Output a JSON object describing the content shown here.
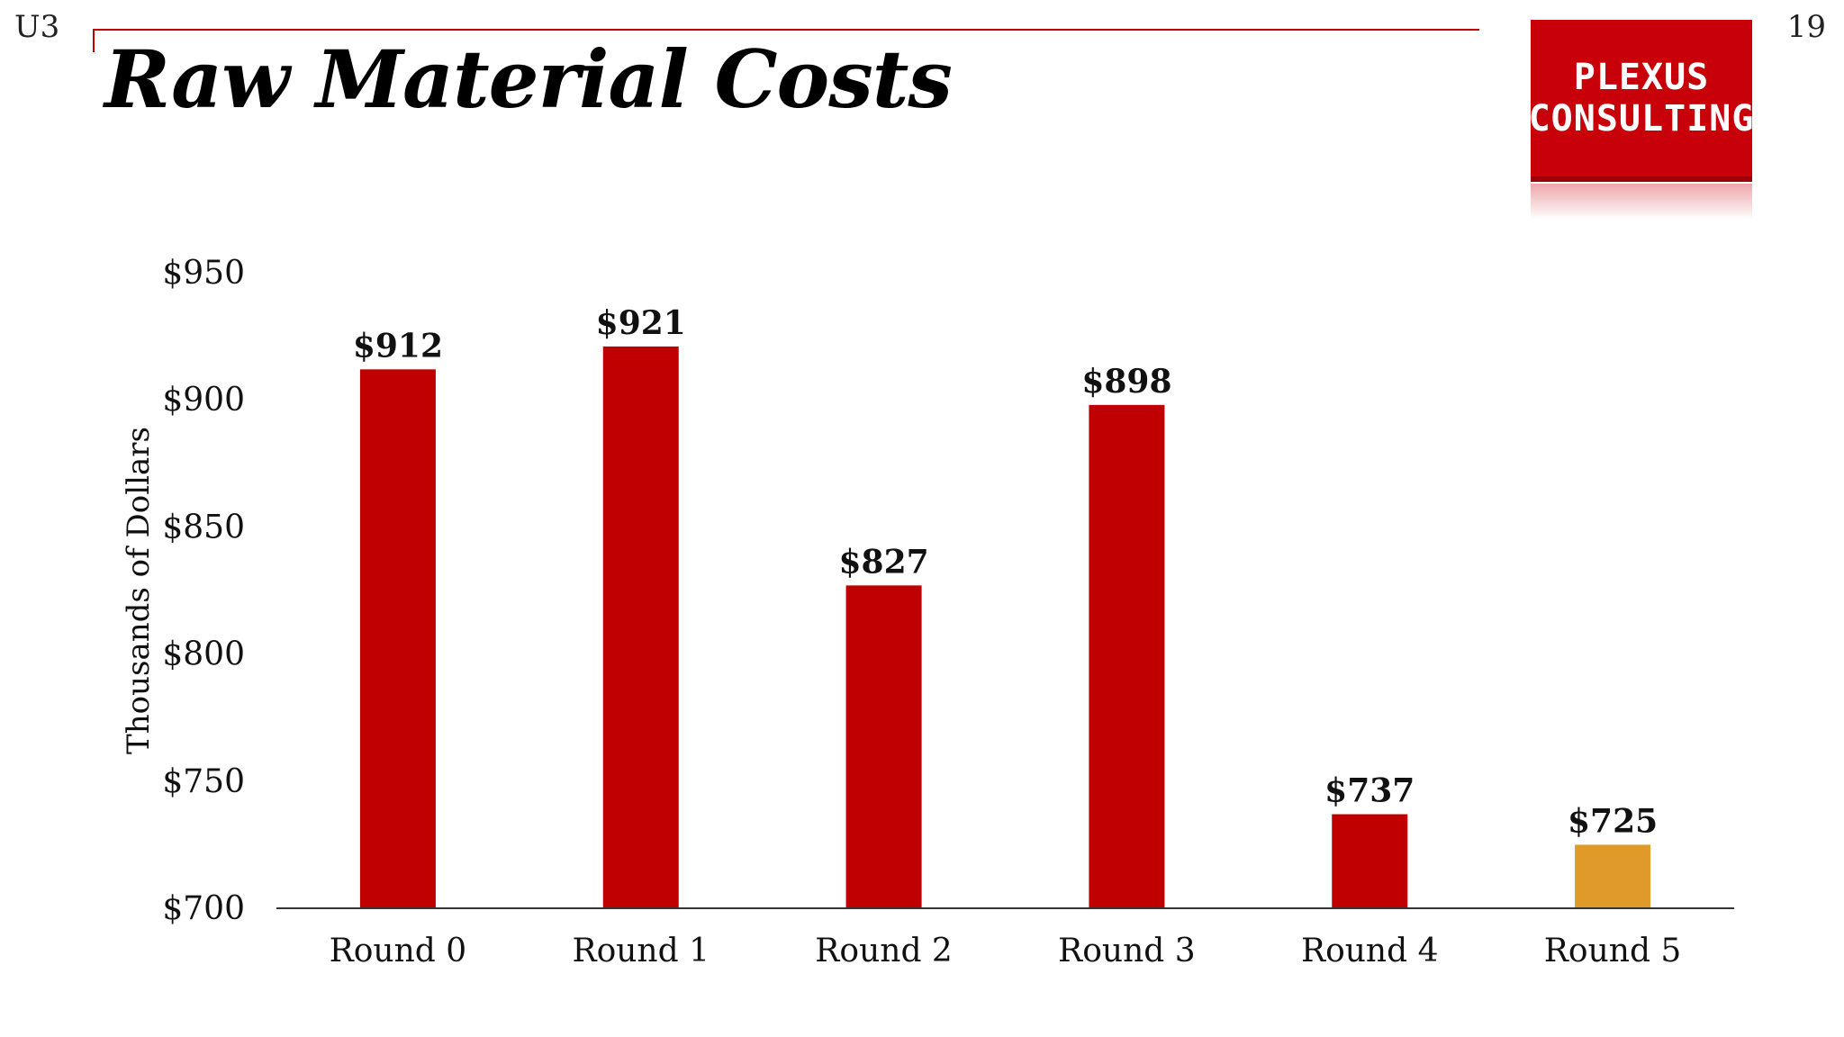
{
  "page": {
    "section_label": "U3",
    "page_number": "19",
    "title": "Raw Material Costs"
  },
  "logo": {
    "line1": "PLEXUS",
    "line2": "CONSULTING"
  },
  "colors": {
    "primary_bar": "#c00000",
    "highlight_bar": "#e09a2a",
    "brand_red": "#c8000a"
  },
  "chart_data": {
    "type": "bar",
    "title": "Raw Material Costs",
    "xlabel": "",
    "ylabel": "Thousands of Dollars",
    "categories": [
      "Round 0",
      "Round 1",
      "Round 2",
      "Round 3",
      "Round 4",
      "Round 5"
    ],
    "values": [
      912,
      921,
      827,
      898,
      737,
      725
    ],
    "data_labels": [
      "$912",
      "$921",
      "$827",
      "$898",
      "$737",
      "$725"
    ],
    "highlight_index": 5,
    "ylim": [
      700,
      950
    ],
    "yticks": [
      700,
      750,
      800,
      850,
      900,
      950
    ],
    "ytick_labels": [
      "$700",
      "$750",
      "$800",
      "$850",
      "$900",
      "$950"
    ],
    "grid": false,
    "legend": "none"
  }
}
